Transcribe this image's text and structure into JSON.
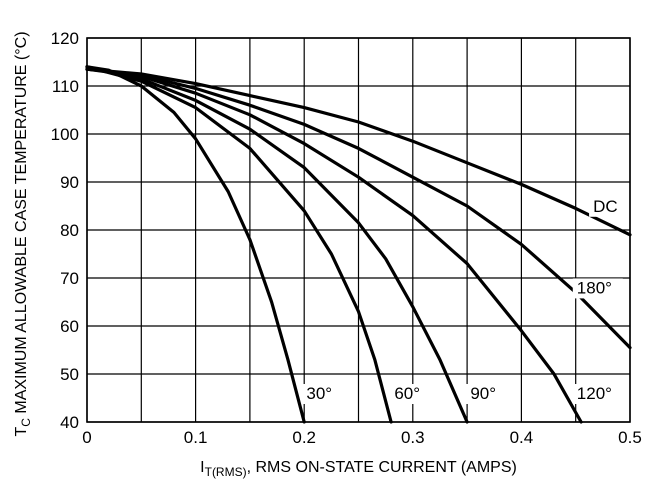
{
  "chart_data": {
    "type": "line",
    "title": "",
    "xlabel": {
      "main": "I",
      "sub": "T(RMS)",
      "rest": ", RMS ON-STATE CURRENT (AMPS)"
    },
    "ylabel": {
      "main": "T",
      "sub": "C",
      "rest": " MAXIMUM ALLOWABLE CASE TEMPERATURE (°C)"
    },
    "xlim": [
      0,
      0.5
    ],
    "ylim": [
      40,
      120
    ],
    "xticks": [
      0,
      0.05,
      0.1,
      0.15,
      0.2,
      0.25,
      0.3,
      0.35,
      0.4,
      0.45,
      0.5
    ],
    "xtick_labels": [
      "0",
      "",
      "0.1",
      "",
      "0.2",
      "",
      "0.3",
      "",
      "0.4",
      "",
      "0.5"
    ],
    "yticks": [
      40,
      50,
      60,
      70,
      80,
      90,
      100,
      110,
      120
    ],
    "ytick_labels": [
      "40",
      "50",
      "60",
      "70",
      "80",
      "90",
      "100",
      "110",
      "120"
    ],
    "grid": true,
    "series": [
      {
        "name": "30°",
        "x": [
          0,
          0.02,
          0.05,
          0.08,
          0.1,
          0.13,
          0.15,
          0.17,
          0.185,
          0.2
        ],
        "y": [
          114,
          113.3,
          110,
          104.5,
          99,
          88,
          78,
          65,
          53,
          40
        ]
      },
      {
        "name": "60°",
        "x": [
          0,
          0.05,
          0.1,
          0.15,
          0.2,
          0.225,
          0.25,
          0.265,
          0.28
        ],
        "y": [
          114,
          111,
          105.5,
          97,
          84,
          75,
          63,
          53,
          40
        ]
      },
      {
        "name": "90°",
        "x": [
          0,
          0.05,
          0.1,
          0.15,
          0.2,
          0.25,
          0.275,
          0.3,
          0.325,
          0.35
        ],
        "y": [
          114,
          111.5,
          107,
          101,
          93,
          81.5,
          74,
          64,
          53,
          40
        ]
      },
      {
        "name": "120°",
        "x": [
          0,
          0.05,
          0.1,
          0.15,
          0.2,
          0.25,
          0.3,
          0.35,
          0.4,
          0.43,
          0.455
        ],
        "y": [
          113.5,
          112,
          108.5,
          104,
          98,
          91,
          83,
          73,
          59,
          50,
          40
        ]
      },
      {
        "name": "180°",
        "x": [
          0,
          0.05,
          0.1,
          0.15,
          0.2,
          0.25,
          0.3,
          0.35,
          0.4,
          0.45,
          0.5
        ],
        "y": [
          113.5,
          112.3,
          109.5,
          106,
          102,
          97,
          91,
          85,
          77,
          67,
          55.5
        ]
      },
      {
        "name": "DC",
        "x": [
          0,
          0.05,
          0.1,
          0.15,
          0.2,
          0.25,
          0.3,
          0.35,
          0.4,
          0.45,
          0.5
        ],
        "y": [
          113.5,
          112.5,
          110.5,
          108,
          105.5,
          102.5,
          98.5,
          94,
          89.5,
          84.5,
          79
        ]
      }
    ],
    "annotations": [
      {
        "text": "30°",
        "x": 0.202,
        "y": 45
      },
      {
        "text": "60°",
        "x": 0.283,
        "y": 45
      },
      {
        "text": "90°",
        "x": 0.353,
        "y": 45
      },
      {
        "text": "120°",
        "x": 0.451,
        "y": 45
      },
      {
        "text": "180°",
        "x": 0.451,
        "y": 67
      },
      {
        "text": "DC",
        "x": 0.466,
        "y": 84
      }
    ]
  }
}
